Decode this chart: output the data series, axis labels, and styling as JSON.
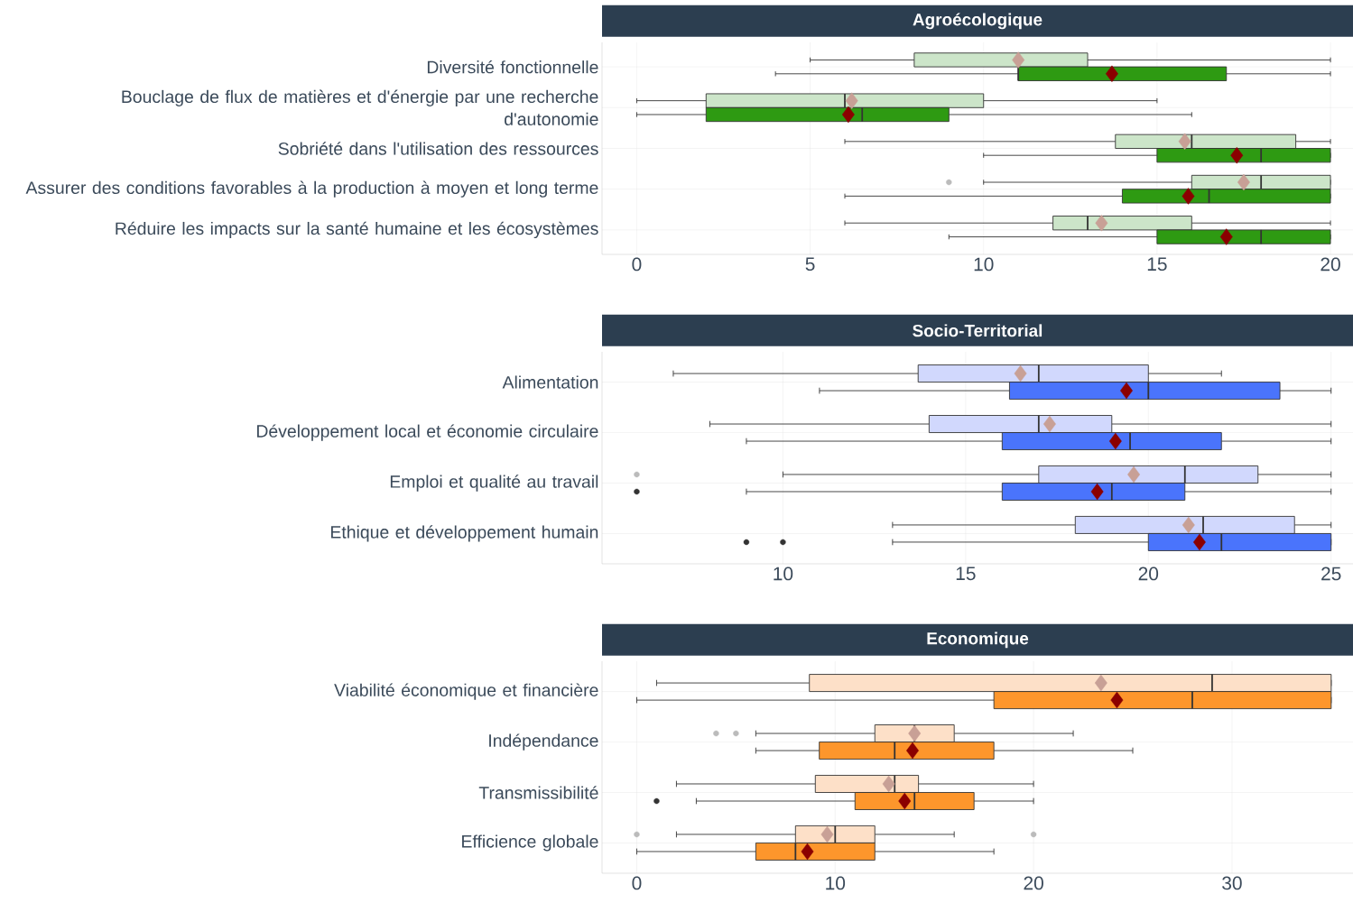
{
  "chart_data": [
    {
      "type": "box",
      "title": "Agroécologique",
      "orientation": "horizontal",
      "grid": true,
      "categories": [
        "Diversité fonctionnelle",
        "Bouclage de flux de matières et d'énergie par une recherche d'autonomie",
        "Sobriété dans l'utilisation des ressources",
        "Assurer des conditions favorables à la production à moyen et long terme",
        "Réduire les impacts sur la santé humaine et les écosystèmes"
      ],
      "xlim": [
        -1,
        20.65
      ],
      "xticks": [
        0,
        5,
        10,
        15,
        20
      ],
      "series": [
        {
          "color": "#cce5c9",
          "boxes": [
            {
              "low": 5,
              "q1": 8,
              "median": 11,
              "q3": 13,
              "high": 20,
              "mean": 11
            },
            {
              "low": 0,
              "q1": 2,
              "median": 6,
              "q3": 10,
              "high": 15,
              "mean": 6.2
            },
            {
              "low": 6,
              "q1": 13.8,
              "median": 16,
              "q3": 19,
              "high": 20,
              "mean": 15.8
            },
            {
              "low": 10,
              "q1": 16,
              "median": 18,
              "q3": 20,
              "high": 20,
              "mean": 17.5,
              "outliers": [
                9
              ]
            },
            {
              "low": 6,
              "q1": 12,
              "median": 13,
              "q3": 16,
              "high": 20,
              "mean": 13.4
            }
          ]
        },
        {
          "color": "#2e9a12",
          "boxes": [
            {
              "low": 4,
              "q1": 11,
              "median": 11,
              "q3": 17,
              "high": 20,
              "mean": 13.7
            },
            {
              "low": 0,
              "q1": 2,
              "median": 6.5,
              "q3": 9,
              "high": 16,
              "mean": 6.1
            },
            {
              "low": 10,
              "q1": 15,
              "median": 18,
              "q3": 20,
              "high": 20,
              "mean": 17.3
            },
            {
              "low": 6,
              "q1": 14,
              "median": 16.5,
              "q3": 20,
              "high": 20,
              "mean": 15.9
            },
            {
              "low": 9,
              "q1": 15,
              "median": 18,
              "q3": 20,
              "high": 20,
              "mean": 17
            }
          ]
        }
      ]
    },
    {
      "type": "box",
      "title": "Socio-Territorial",
      "orientation": "horizontal",
      "grid": true,
      "categories": [
        "Alimentation",
        "Développement local et économie circulaire",
        "Emploi et qualité au travail",
        "Ethique et développement humain"
      ],
      "xlim": [
        5.05,
        25.6
      ],
      "xticks": [
        10,
        15,
        20,
        25
      ],
      "series": [
        {
          "color": "#d1d8fd",
          "boxes": [
            {
              "low": 7,
              "q1": 13.7,
              "median": 17,
              "q3": 20,
              "high": 22,
              "mean": 16.5
            },
            {
              "low": 8,
              "q1": 14,
              "median": 17,
              "q3": 19,
              "high": 25,
              "mean": 17.3
            },
            {
              "low": 10,
              "q1": 17,
              "median": 21,
              "q3": 23,
              "high": 25,
              "mean": 19.6,
              "outliers": [
                6
              ]
            },
            {
              "low": 13,
              "q1": 18,
              "median": 21.5,
              "q3": 24,
              "high": 25,
              "mean": 21.1
            }
          ]
        },
        {
          "color": "#4a74fc",
          "boxes": [
            {
              "low": 11,
              "q1": 16.2,
              "median": 20,
              "q3": 23.6,
              "high": 25,
              "mean": 19.4
            },
            {
              "low": 9,
              "q1": 16,
              "median": 19.5,
              "q3": 22,
              "high": 25,
              "mean": 19.1
            },
            {
              "low": 9,
              "q1": 16,
              "median": 19,
              "q3": 21,
              "high": 25,
              "mean": 18.6,
              "outliers": [
                6
              ]
            },
            {
              "low": 13,
              "q1": 20,
              "median": 22,
              "q3": 25,
              "high": 25,
              "mean": 21.4,
              "outliers": [
                9,
                10
              ]
            }
          ]
        }
      ]
    },
    {
      "type": "box",
      "title": "Economique",
      "orientation": "horizontal",
      "grid": true,
      "categories": [
        "Viabilité économique et financière",
        "Indépendance",
        "Transmissibilité",
        "Efficience globale"
      ],
      "xlim": [
        -1.75,
        36.1
      ],
      "xticks": [
        0,
        10,
        20,
        30
      ],
      "series": [
        {
          "color": "#fde0c8",
          "boxes": [
            {
              "low": 1,
              "q1": 8.7,
              "median": 29,
              "q3": 35,
              "high": 35,
              "mean": 23.4
            },
            {
              "low": 6,
              "q1": 12,
              "median": 14,
              "q3": 16,
              "high": 22,
              "mean": 14,
              "outliers": [
                4,
                5
              ]
            },
            {
              "low": 2,
              "q1": 9,
              "median": 13,
              "q3": 14.2,
              "high": 20,
              "mean": 12.7
            },
            {
              "low": 2,
              "q1": 8,
              "median": 10,
              "q3": 12,
              "high": 16,
              "mean": 9.6,
              "outliers": [
                0,
                20
              ]
            }
          ]
        },
        {
          "color": "#fd962c",
          "boxes": [
            {
              "low": 0,
              "q1": 18,
              "median": 28,
              "q3": 35,
              "high": 35,
              "mean": 24.2
            },
            {
              "low": 6,
              "q1": 9.2,
              "median": 13,
              "q3": 18,
              "high": 25,
              "mean": 13.9
            },
            {
              "low": 3,
              "q1": 11,
              "median": 14,
              "q3": 17,
              "high": 20,
              "mean": 13.5,
              "outliers": [
                1
              ]
            },
            {
              "low": 0,
              "q1": 6,
              "median": 8,
              "q3": 12,
              "high": 18,
              "mean": 8.6
            }
          ]
        }
      ]
    }
  ]
}
